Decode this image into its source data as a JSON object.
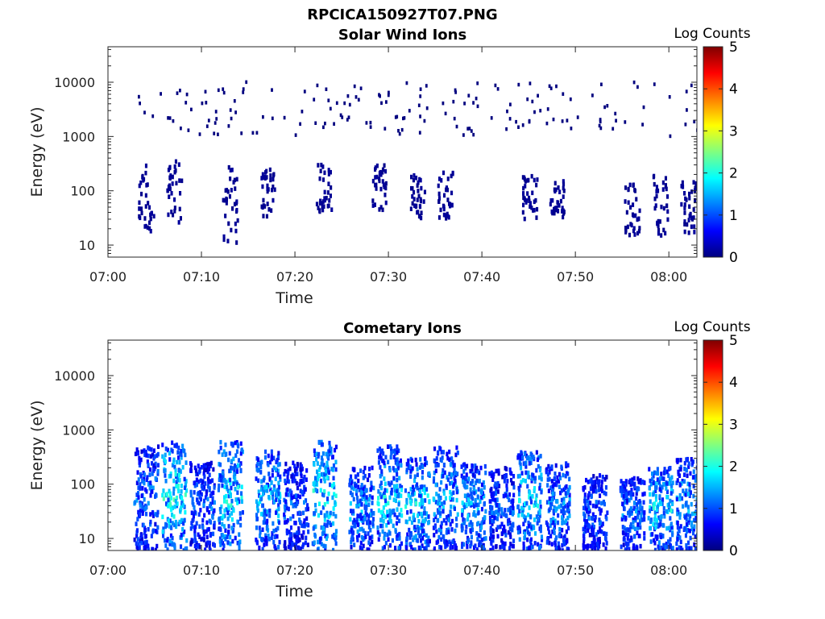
{
  "figure": {
    "title": "RPCICA150927T07.PNG"
  },
  "colormap": {
    "name": "jet",
    "stops": [
      "#00007f",
      "#0000ff",
      "#0080ff",
      "#00ffff",
      "#80ff80",
      "#ffff00",
      "#ff8000",
      "#ff0000",
      "#7f0000"
    ]
  },
  "chart_data": [
    {
      "type": "heatmap",
      "title": "Solar Wind Ions",
      "xlabel": "Time",
      "ylabel": "Energy (eV)",
      "yscale": "log",
      "ylim": [
        6,
        45000
      ],
      "xlim": [
        "07:00",
        "08:03"
      ],
      "x_ticks": [
        "07:00",
        "07:10",
        "07:20",
        "07:30",
        "07:40",
        "07:50",
        "08:00"
      ],
      "y_ticks": [
        "10",
        "100",
        "1000",
        "10000"
      ],
      "colorbar": {
        "label": "Log Counts",
        "range": [
          0,
          5
        ],
        "ticks": [
          "0",
          "1",
          "2",
          "3",
          "4",
          "5"
        ]
      },
      "clusters": [
        {
          "time": "07:04",
          "emin": 18,
          "emax": 300,
          "level": 0.1
        },
        {
          "time": "07:07",
          "emin": 25,
          "emax": 350,
          "level": 0.1
        },
        {
          "time": "07:13",
          "emin": 10,
          "emax": 300,
          "level": 0.1
        },
        {
          "time": "07:17",
          "emin": 30,
          "emax": 280,
          "level": 0.1
        },
        {
          "time": "07:23",
          "emin": 40,
          "emax": 300,
          "level": 0.1
        },
        {
          "time": "07:29",
          "emin": 40,
          "emax": 300,
          "level": 0.1
        },
        {
          "time": "07:33",
          "emin": 30,
          "emax": 200,
          "level": 0.1
        },
        {
          "time": "07:36",
          "emin": 30,
          "emax": 250,
          "level": 0.1
        },
        {
          "time": "07:45",
          "emin": 30,
          "emax": 200,
          "level": 0.1
        },
        {
          "time": "07:48",
          "emin": 30,
          "emax": 150,
          "level": 0.1
        },
        {
          "time": "07:56",
          "emin": 15,
          "emax": 130,
          "level": 0.1
        },
        {
          "time": "07:59",
          "emin": 15,
          "emax": 200,
          "level": 0.1
        },
        {
          "time": "08:02",
          "emin": 15,
          "emax": 150,
          "level": 0.1
        }
      ],
      "scatter_energy_range": [
        1000,
        10000
      ]
    },
    {
      "type": "heatmap",
      "title": "Cometary Ions",
      "xlabel": "Time",
      "ylabel": "Energy (eV)",
      "yscale": "log",
      "ylim": [
        6,
        45000
      ],
      "xlim": [
        "07:00",
        "08:03"
      ],
      "x_ticks": [
        "07:00",
        "07:10",
        "07:20",
        "07:30",
        "07:40",
        "07:50",
        "08:00"
      ],
      "y_ticks": [
        "10",
        "100",
        "1000",
        "10000"
      ],
      "colorbar": {
        "label": "Log Counts",
        "range": [
          0,
          5
        ],
        "ticks": [
          "0",
          "1",
          "2",
          "3",
          "4",
          "5"
        ]
      },
      "clusters": [
        {
          "time": "07:04",
          "emin": 6,
          "emax": 500,
          "level": 1.1
        },
        {
          "time": "07:07",
          "emin": 6,
          "emax": 600,
          "level": 1.7
        },
        {
          "time": "07:10",
          "emin": 6,
          "emax": 250,
          "level": 1.0
        },
        {
          "time": "07:13",
          "emin": 6,
          "emax": 600,
          "level": 1.6
        },
        {
          "time": "07:17",
          "emin": 6,
          "emax": 400,
          "level": 1.4
        },
        {
          "time": "07:20",
          "emin": 6,
          "emax": 250,
          "level": 1.0
        },
        {
          "time": "07:23",
          "emin": 6,
          "emax": 600,
          "level": 1.6
        },
        {
          "time": "07:27",
          "emin": 6,
          "emax": 200,
          "level": 1.3
        },
        {
          "time": "07:30",
          "emin": 6,
          "emax": 500,
          "level": 1.5
        },
        {
          "time": "07:33",
          "emin": 6,
          "emax": 300,
          "level": 1.5
        },
        {
          "time": "07:36",
          "emin": 6,
          "emax": 500,
          "level": 1.3
        },
        {
          "time": "07:39",
          "emin": 6,
          "emax": 250,
          "level": 1.3
        },
        {
          "time": "07:42",
          "emin": 6,
          "emax": 200,
          "level": 1.0
        },
        {
          "time": "07:45",
          "emin": 6,
          "emax": 400,
          "level": 1.5
        },
        {
          "time": "07:48",
          "emin": 6,
          "emax": 250,
          "level": 1.2
        },
        {
          "time": "07:52",
          "emin": 6,
          "emax": 150,
          "level": 1.0
        },
        {
          "time": "07:56",
          "emin": 6,
          "emax": 130,
          "level": 1.1
        },
        {
          "time": "07:59",
          "emin": 6,
          "emax": 200,
          "level": 1.5
        },
        {
          "time": "08:02",
          "emin": 6,
          "emax": 300,
          "level": 1.3
        }
      ]
    }
  ]
}
